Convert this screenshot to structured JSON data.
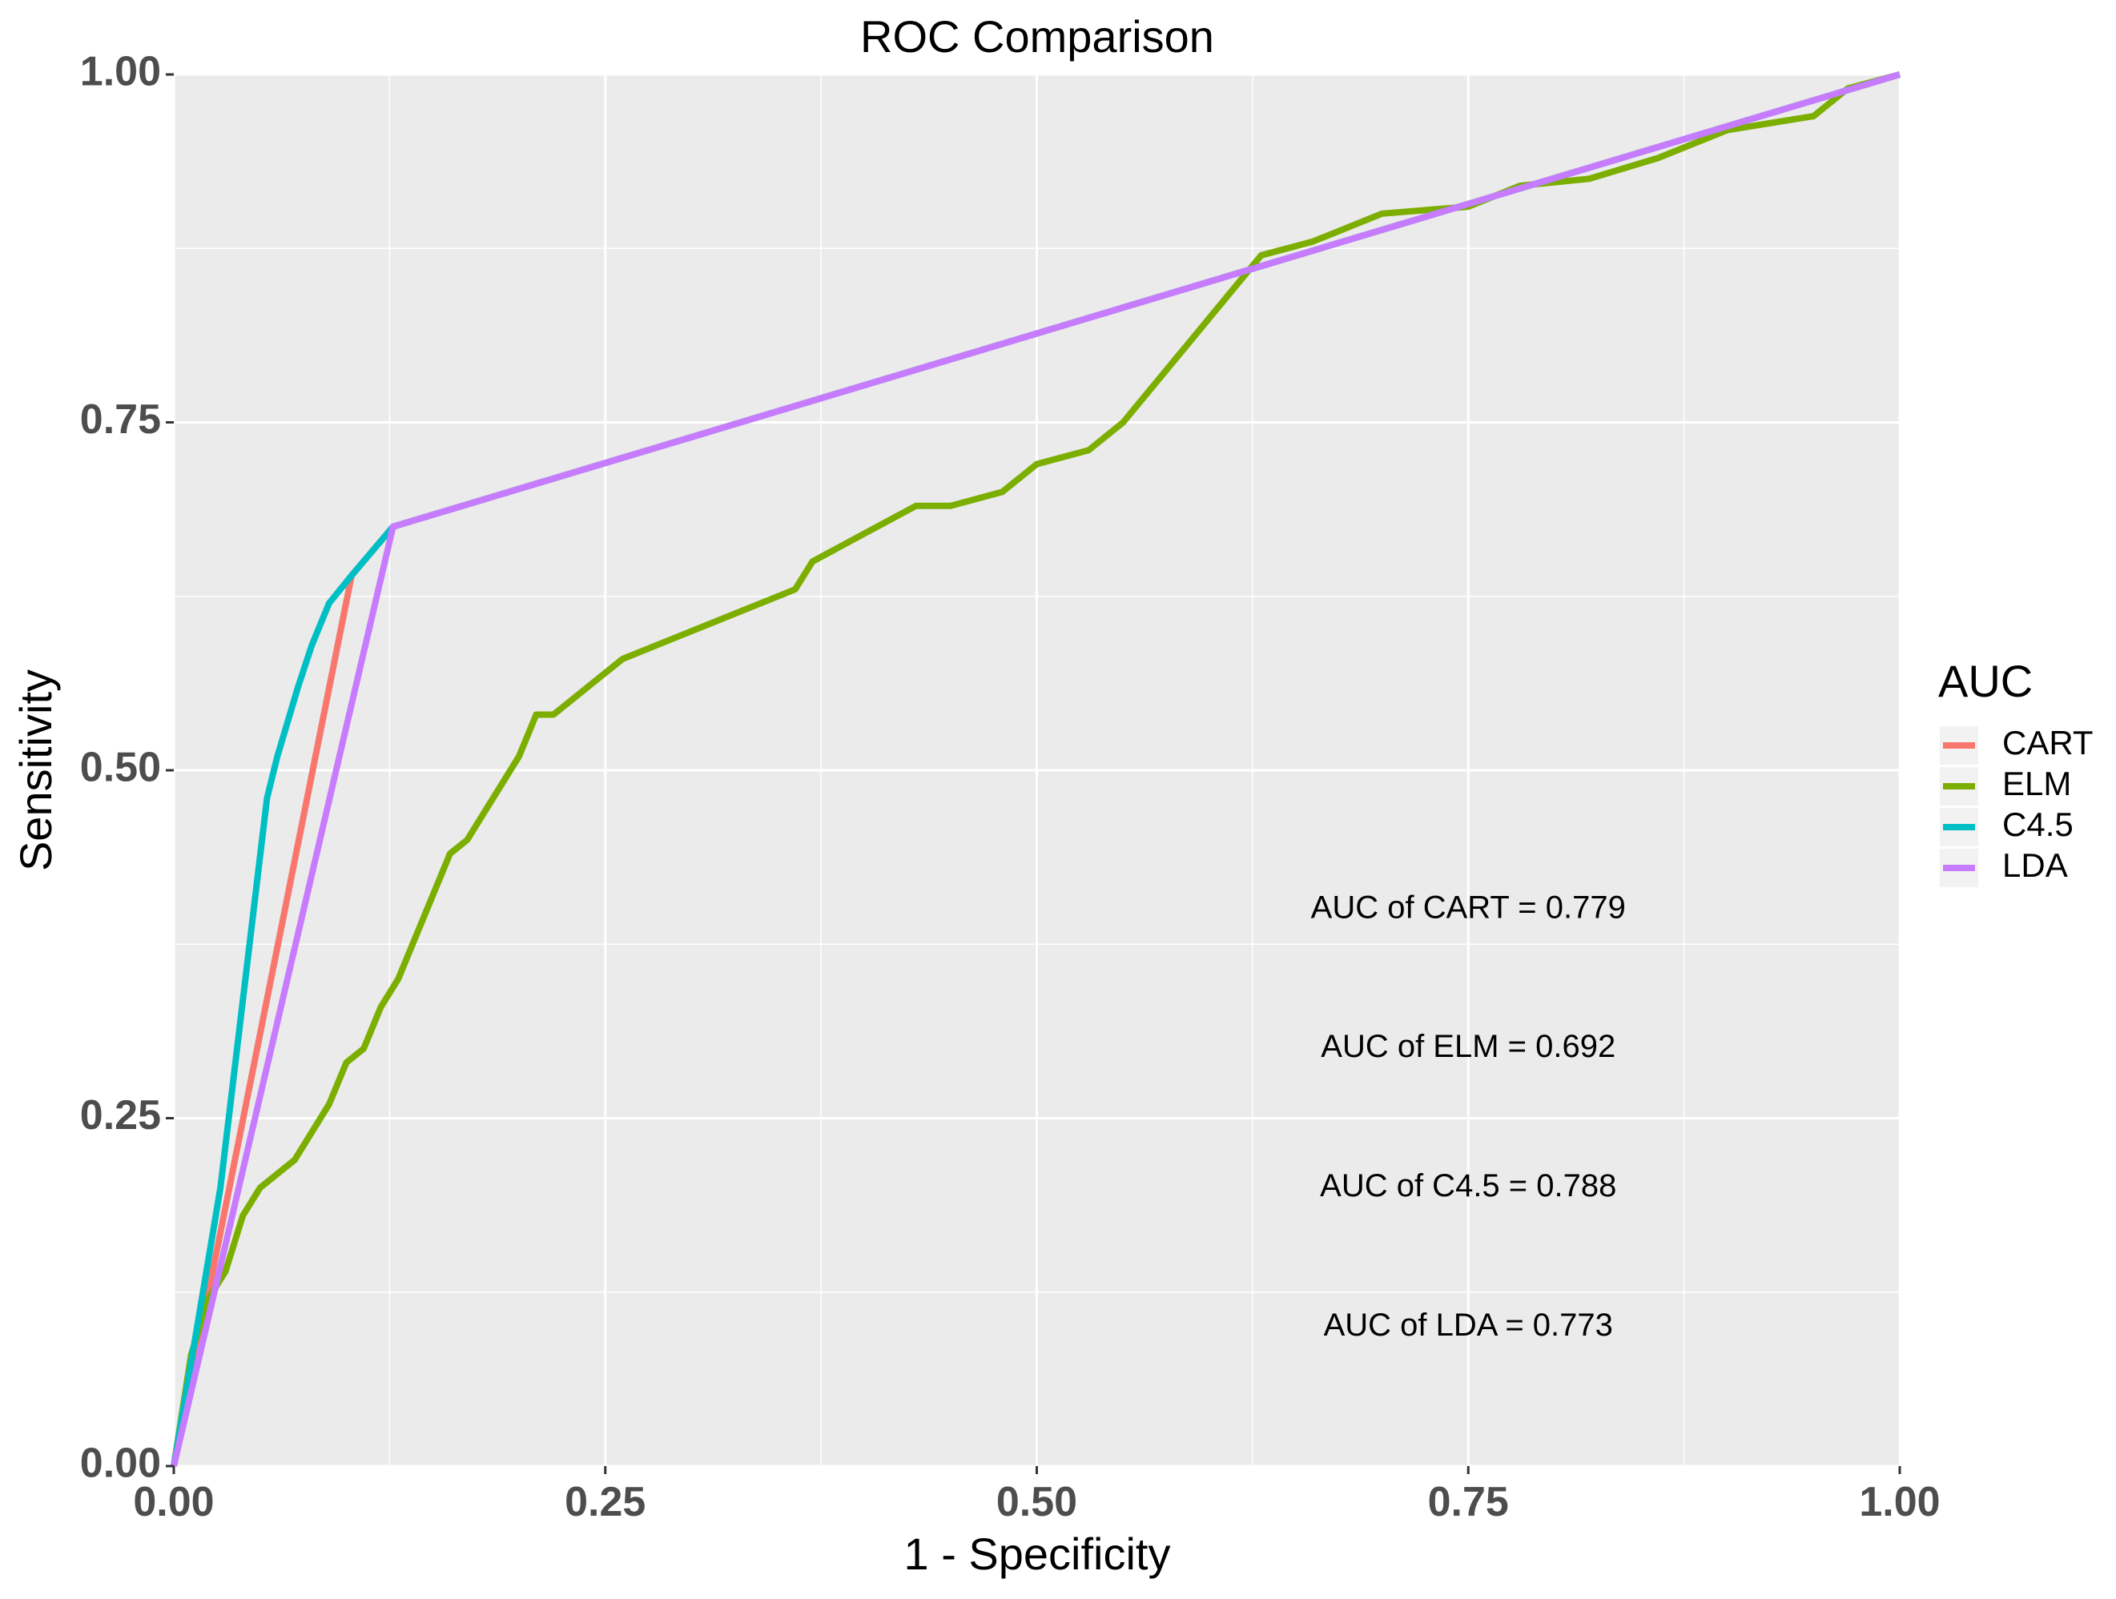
{
  "chart_data": {
    "type": "line",
    "title": "ROC Comparison",
    "xlabel": "1 - Specificity",
    "ylabel": "Sensitivity",
    "xlim": [
      0,
      1
    ],
    "ylim": [
      0,
      1
    ],
    "xticks": [
      0,
      0.25,
      0.5,
      0.75,
      1
    ],
    "yticks": [
      0,
      0.25,
      0.5,
      0.75,
      1
    ],
    "xtick_labels": [
      "0.00",
      "0.25",
      "0.50",
      "0.75",
      "1.00"
    ],
    "ytick_labels": [
      "0.00",
      "0.25",
      "0.50",
      "0.75",
      "1.00"
    ],
    "grid": true,
    "legend": {
      "title": "AUC",
      "position": "right"
    },
    "series": [
      {
        "name": "CART",
        "color": "#F8766D",
        "x": [
          0,
          0.103,
          0.127,
          1
        ],
        "y": [
          0,
          0.64,
          0.675,
          1
        ]
      },
      {
        "name": "ELM",
        "color": "#7CAE00",
        "x": [
          0,
          0.01,
          0.02,
          0.03,
          0.04,
          0.05,
          0.06,
          0.07,
          0.08,
          0.09,
          0.1,
          0.11,
          0.12,
          0.13,
          0.14,
          0.15,
          0.16,
          0.17,
          0.18,
          0.19,
          0.2,
          0.21,
          0.22,
          0.24,
          0.26,
          0.28,
          0.3,
          0.32,
          0.34,
          0.36,
          0.37,
          0.4,
          0.43,
          0.45,
          0.48,
          0.5,
          0.53,
          0.55,
          0.57,
          0.59,
          0.61,
          0.63,
          0.66,
          0.7,
          0.75,
          0.78,
          0.82,
          0.86,
          0.9,
          0.95,
          0.97,
          1
        ],
        "y": [
          0,
          0.08,
          0.12,
          0.14,
          0.18,
          0.2,
          0.21,
          0.22,
          0.24,
          0.26,
          0.29,
          0.3,
          0.33,
          0.35,
          0.38,
          0.41,
          0.44,
          0.45,
          0.47,
          0.49,
          0.51,
          0.54,
          0.54,
          0.56,
          0.58,
          0.59,
          0.6,
          0.61,
          0.62,
          0.63,
          0.65,
          0.67,
          0.69,
          0.69,
          0.7,
          0.72,
          0.73,
          0.75,
          0.78,
          0.81,
          0.84,
          0.87,
          0.88,
          0.9,
          0.905,
          0.92,
          0.925,
          0.94,
          0.96,
          0.97,
          0.99,
          1
        ]
      },
      {
        "name": "C4.5",
        "color": "#00BFC4",
        "x": [
          0,
          0.027,
          0.054,
          0.06,
          0.072,
          0.08,
          0.09,
          0.103,
          0.127,
          1
        ],
        "y": [
          0,
          0.2,
          0.48,
          0.51,
          0.56,
          0.59,
          0.62,
          0.64,
          0.675,
          1
        ]
      },
      {
        "name": "LDA",
        "color": "#C77CFF",
        "x": [
          0,
          0.127,
          1
        ],
        "y": [
          0,
          0.675,
          1
        ]
      }
    ],
    "annotations": [
      {
        "text": "AUC of CART = 0.779",
        "x": 0.75,
        "y": 0.4
      },
      {
        "text": "AUC of ELM = 0.692",
        "x": 0.75,
        "y": 0.3
      },
      {
        "text": "AUC of C4.5 = 0.788",
        "x": 0.75,
        "y": 0.2
      },
      {
        "text": "AUC of LDA = 0.773",
        "x": 0.75,
        "y": 0.1
      }
    ]
  }
}
